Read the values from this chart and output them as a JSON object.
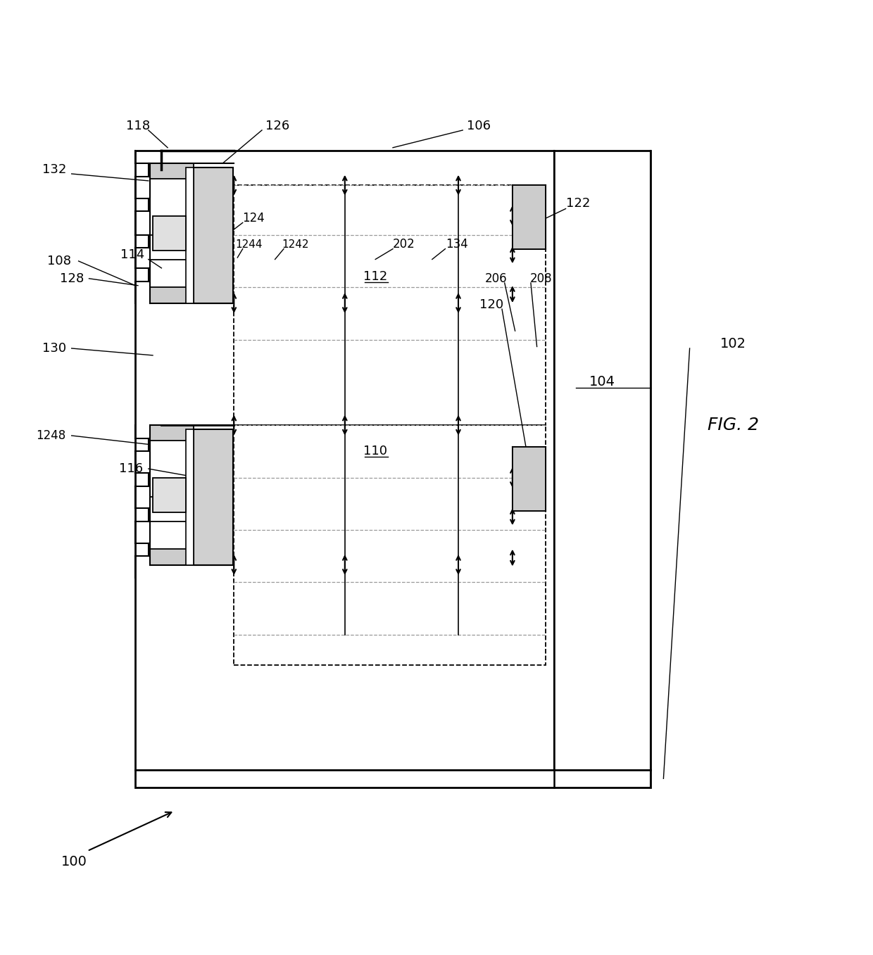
{
  "title": "FIG. 2",
  "bg_color": "#ffffff",
  "line_color": "#000000",
  "gray_color": "#aaaaaa"
}
